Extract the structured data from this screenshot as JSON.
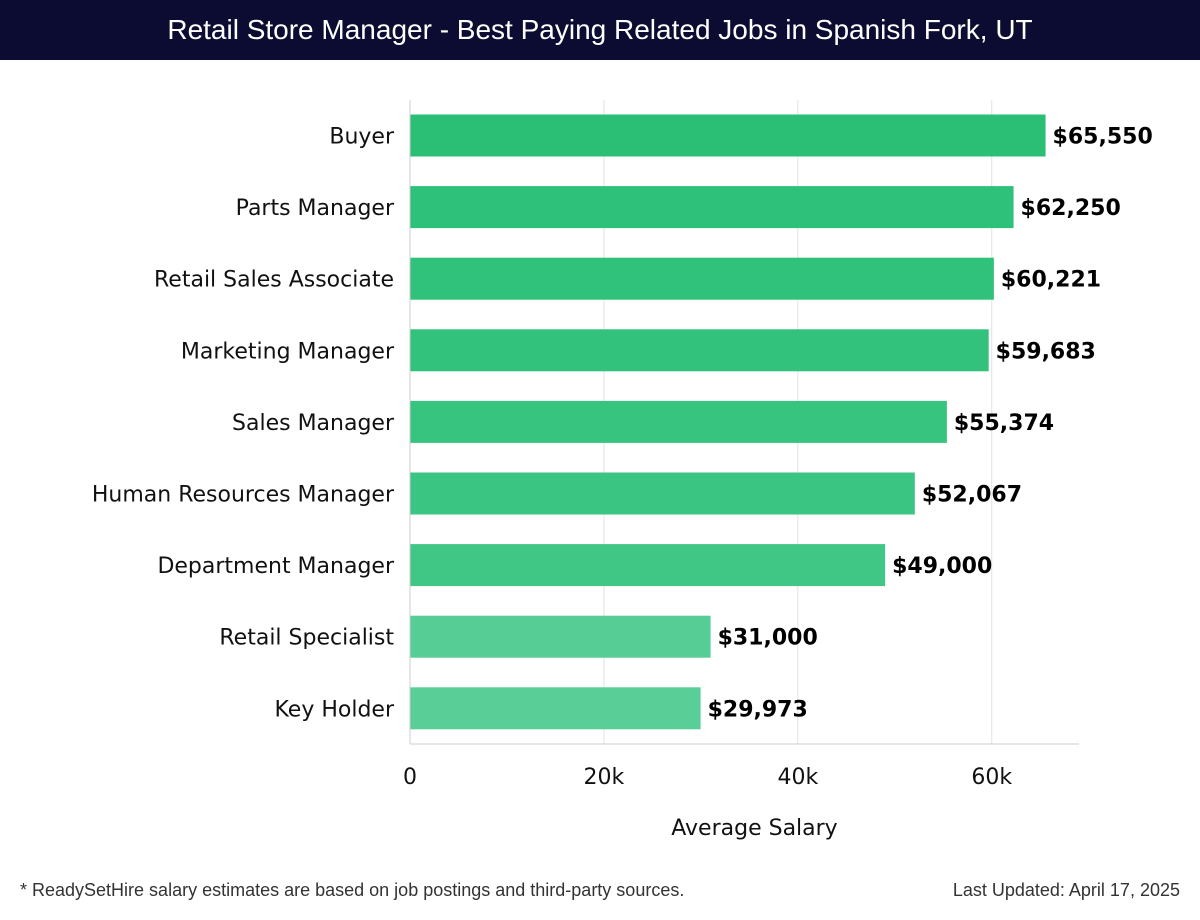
{
  "header": {
    "title": "Retail Store Manager - Best Paying Related Jobs in Spanish Fork, UT"
  },
  "chart_data": {
    "type": "bar",
    "orientation": "horizontal",
    "categories": [
      "Buyer",
      "Parts Manager",
      "Retail Sales Associate",
      "Marketing Manager",
      "Sales Manager",
      "Human Resources Manager",
      "Department Manager",
      "Retail Specialist",
      "Key Holder"
    ],
    "values": [
      65550,
      62250,
      60221,
      59683,
      55374,
      52067,
      49000,
      31000,
      29973
    ],
    "value_labels": [
      "$65,550",
      "$62,250",
      "$60,221",
      "$59,683",
      "$55,374",
      "$52,067",
      "$49,000",
      "$31,000",
      "$29,973"
    ],
    "bar_colors": [
      "#2bbf76",
      "#2ec179",
      "#30c17a",
      "#32c27b",
      "#37c47f",
      "#3bc582",
      "#40c785",
      "#56cd95",
      "#5ace97"
    ],
    "xlabel": "Average Salary",
    "ylabel": "",
    "xlim": [
      0,
      69000
    ],
    "xticks": [
      0,
      20000,
      40000,
      60000
    ],
    "xtick_labels": [
      "0",
      "20k",
      "40k",
      "60k"
    ],
    "grid": "vertical"
  },
  "footer": {
    "note": "* ReadySetHire salary estimates are based on job postings and third-party sources.",
    "updated": "Last Updated: April 17, 2025"
  }
}
